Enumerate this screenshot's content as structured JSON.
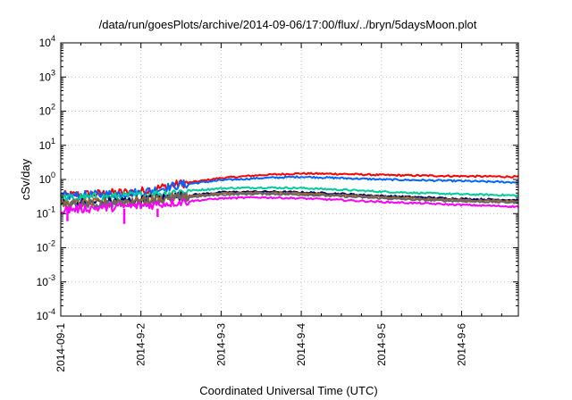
{
  "chart_data": {
    "type": "line",
    "title": "/data/run/goesPlots/archive/2014-09-06/17:00/flux/../bryn/5daysMoon.plot",
    "xlabel": "Coordinated Universal Time (UTC)",
    "ylabel": "cSv/day",
    "yscale": "log",
    "ylim": [
      0.0001,
      10000
    ],
    "xlim": [
      "2014-09-01T00:00",
      "2014-09-06T17:00"
    ],
    "grid": true,
    "legend": "none",
    "x_ticks": [
      {
        "label": "2014-09-1",
        "date": "2014-09-01"
      },
      {
        "label": "2014-9-2",
        "date": "2014-09-02"
      },
      {
        "label": "2014-9-3",
        "date": "2014-09-03"
      },
      {
        "label": "2014-9-4",
        "date": "2014-09-04"
      },
      {
        "label": "2014-9-5",
        "date": "2014-09-05"
      },
      {
        "label": "2014-9-6",
        "date": "2014-09-06"
      }
    ],
    "y_ticks": [
      {
        "value": 0.0001,
        "base": "10",
        "exp": "-4"
      },
      {
        "value": 0.001,
        "base": "10",
        "exp": "-3"
      },
      {
        "value": 0.01,
        "base": "10",
        "exp": "-2"
      },
      {
        "value": 0.1,
        "base": "10",
        "exp": "-1"
      },
      {
        "value": 1,
        "base": "10",
        "exp": "0"
      },
      {
        "value": 10,
        "base": "10",
        "exp": "1"
      },
      {
        "value": 100,
        "base": "10",
        "exp": "2"
      },
      {
        "value": 1000,
        "base": "10",
        "exp": "3"
      },
      {
        "value": 10000,
        "base": "10",
        "exp": "4"
      }
    ],
    "series": [
      {
        "color": "#ff0000",
        "points": [
          [
            "2014-09-01T00:00",
            0.34
          ],
          [
            "2014-09-01T12:00",
            0.38
          ],
          [
            "2014-09-02T00:00",
            0.45
          ],
          [
            "2014-09-02T12:00",
            0.75
          ],
          [
            "2014-09-03T00:00",
            1.1
          ],
          [
            "2014-09-03T12:00",
            1.35
          ],
          [
            "2014-09-04T00:00",
            1.5
          ],
          [
            "2014-09-04T12:00",
            1.45
          ],
          [
            "2014-09-05T00:00",
            1.35
          ],
          [
            "2014-09-05T12:00",
            1.3
          ],
          [
            "2014-09-06T00:00",
            1.25
          ],
          [
            "2014-09-06T17:00",
            1.2
          ]
        ]
      },
      {
        "color": "#0066ff",
        "points": [
          [
            "2014-09-01T00:00",
            0.32
          ],
          [
            "2014-09-01T12:00",
            0.36
          ],
          [
            "2014-09-02T00:00",
            0.42
          ],
          [
            "2014-09-02T12:00",
            0.7
          ],
          [
            "2014-09-03T00:00",
            0.95
          ],
          [
            "2014-09-03T12:00",
            1.1
          ],
          [
            "2014-09-04T00:00",
            1.2
          ],
          [
            "2014-09-04T12:00",
            1.1
          ],
          [
            "2014-09-05T00:00",
            1.0
          ],
          [
            "2014-09-05T12:00",
            0.95
          ],
          [
            "2014-09-06T00:00",
            0.9
          ],
          [
            "2014-09-06T17:00",
            0.82
          ]
        ]
      },
      {
        "color": "#00cc99",
        "points": [
          [
            "2014-09-01T00:00",
            0.28
          ],
          [
            "2014-09-01T12:00",
            0.3
          ],
          [
            "2014-09-02T00:00",
            0.34
          ],
          [
            "2014-09-02T12:00",
            0.45
          ],
          [
            "2014-09-03T00:00",
            0.55
          ],
          [
            "2014-09-03T12:00",
            0.58
          ],
          [
            "2014-09-04T00:00",
            0.56
          ],
          [
            "2014-09-04T12:00",
            0.5
          ],
          [
            "2014-09-05T00:00",
            0.44
          ],
          [
            "2014-09-05T12:00",
            0.4
          ],
          [
            "2014-09-06T00:00",
            0.37
          ],
          [
            "2014-09-06T17:00",
            0.34
          ]
        ]
      },
      {
        "color": "#000066",
        "points": [
          [
            "2014-09-01T00:00",
            0.2
          ],
          [
            "2014-09-01T12:00",
            0.22
          ],
          [
            "2014-09-02T00:00",
            0.25
          ],
          [
            "2014-09-02T12:00",
            0.33
          ],
          [
            "2014-09-03T00:00",
            0.42
          ],
          [
            "2014-09-03T12:00",
            0.44
          ],
          [
            "2014-09-04T00:00",
            0.42
          ],
          [
            "2014-09-04T12:00",
            0.38
          ],
          [
            "2014-09-05T00:00",
            0.33
          ],
          [
            "2014-09-05T12:00",
            0.3
          ],
          [
            "2014-09-06T00:00",
            0.27
          ],
          [
            "2014-09-06T17:00",
            0.25
          ]
        ]
      },
      {
        "color": "#996633",
        "points": [
          [
            "2014-09-01T00:00",
            0.19
          ],
          [
            "2014-09-01T12:00",
            0.21
          ],
          [
            "2014-09-02T00:00",
            0.24
          ],
          [
            "2014-09-02T12:00",
            0.31
          ],
          [
            "2014-09-03T00:00",
            0.39
          ],
          [
            "2014-09-03T12:00",
            0.41
          ],
          [
            "2014-09-04T00:00",
            0.39
          ],
          [
            "2014-09-04T12:00",
            0.35
          ],
          [
            "2014-09-05T00:00",
            0.31
          ],
          [
            "2014-09-05T12:00",
            0.28
          ],
          [
            "2014-09-06T00:00",
            0.25
          ],
          [
            "2014-09-06T17:00",
            0.23
          ]
        ]
      },
      {
        "color": "#666666",
        "points": [
          [
            "2014-09-01T00:00",
            0.17
          ],
          [
            "2014-09-01T12:00",
            0.19
          ],
          [
            "2014-09-02T00:00",
            0.22
          ],
          [
            "2014-09-02T12:00",
            0.29
          ],
          [
            "2014-09-03T00:00",
            0.36
          ],
          [
            "2014-09-03T12:00",
            0.38
          ],
          [
            "2014-09-04T00:00",
            0.36
          ],
          [
            "2014-09-04T12:00",
            0.32
          ],
          [
            "2014-09-05T00:00",
            0.28
          ],
          [
            "2014-09-05T12:00",
            0.25
          ],
          [
            "2014-09-06T00:00",
            0.23
          ],
          [
            "2014-09-06T17:00",
            0.21
          ]
        ]
      },
      {
        "color": "#ff00ff",
        "points": [
          [
            "2014-09-01T00:00",
            0.13
          ],
          [
            "2014-09-01T12:00",
            0.15
          ],
          [
            "2014-09-02T00:00",
            0.17
          ],
          [
            "2014-09-02T12:00",
            0.22
          ],
          [
            "2014-09-03T00:00",
            0.28
          ],
          [
            "2014-09-03T12:00",
            0.3
          ],
          [
            "2014-09-04T00:00",
            0.28
          ],
          [
            "2014-09-04T12:00",
            0.25
          ],
          [
            "2014-09-05T00:00",
            0.22
          ],
          [
            "2014-09-05T12:00",
            0.2
          ],
          [
            "2014-09-06T00:00",
            0.18
          ],
          [
            "2014-09-06T17:00",
            0.16
          ]
        ]
      }
    ],
    "spikes": [
      {
        "color": "#ff00ff",
        "x": "2014-09-01T02:00",
        "y": 0.06
      },
      {
        "color": "#ff00ff",
        "x": "2014-09-01T19:00",
        "y": 0.05
      },
      {
        "color": "#ff00ff",
        "x": "2014-09-02T05:00",
        "y": 0.08
      }
    ]
  }
}
